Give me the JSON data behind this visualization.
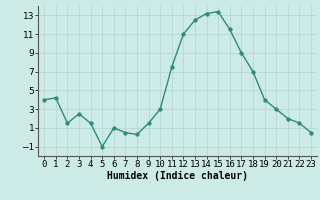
{
  "x": [
    0,
    1,
    2,
    3,
    4,
    5,
    6,
    7,
    8,
    9,
    10,
    11,
    12,
    13,
    14,
    15,
    16,
    17,
    18,
    19,
    20,
    21,
    22,
    23
  ],
  "y": [
    4.0,
    4.2,
    1.5,
    2.5,
    1.5,
    -1.0,
    1.0,
    0.5,
    0.3,
    1.5,
    3.0,
    7.5,
    11.0,
    12.5,
    13.2,
    13.4,
    11.5,
    9.0,
    7.0,
    4.0,
    3.0,
    2.0,
    1.5,
    0.5
  ],
  "line_color": "#2e8b7a",
  "marker_color": "#2e8b7a",
  "bg_color": "#cceae6",
  "grid_color": "#b8d8d4",
  "xlabel": "Humidex (Indice chaleur)",
  "xlabel_fontsize": 7,
  "xlim": [
    -0.5,
    23.5
  ],
  "ylim": [
    -2,
    14
  ],
  "yticks": [
    -1,
    1,
    3,
    5,
    7,
    9,
    11,
    13
  ],
  "xtick_labels": [
    "0",
    "1",
    "2",
    "3",
    "4",
    "5",
    "6",
    "7",
    "8",
    "9",
    "10",
    "11",
    "12",
    "13",
    "14",
    "15",
    "16",
    "17",
    "18",
    "19",
    "20",
    "21",
    "22",
    "23"
  ],
  "tick_fontsize": 6.5,
  "marker_size": 2.5,
  "line_width": 1.0
}
